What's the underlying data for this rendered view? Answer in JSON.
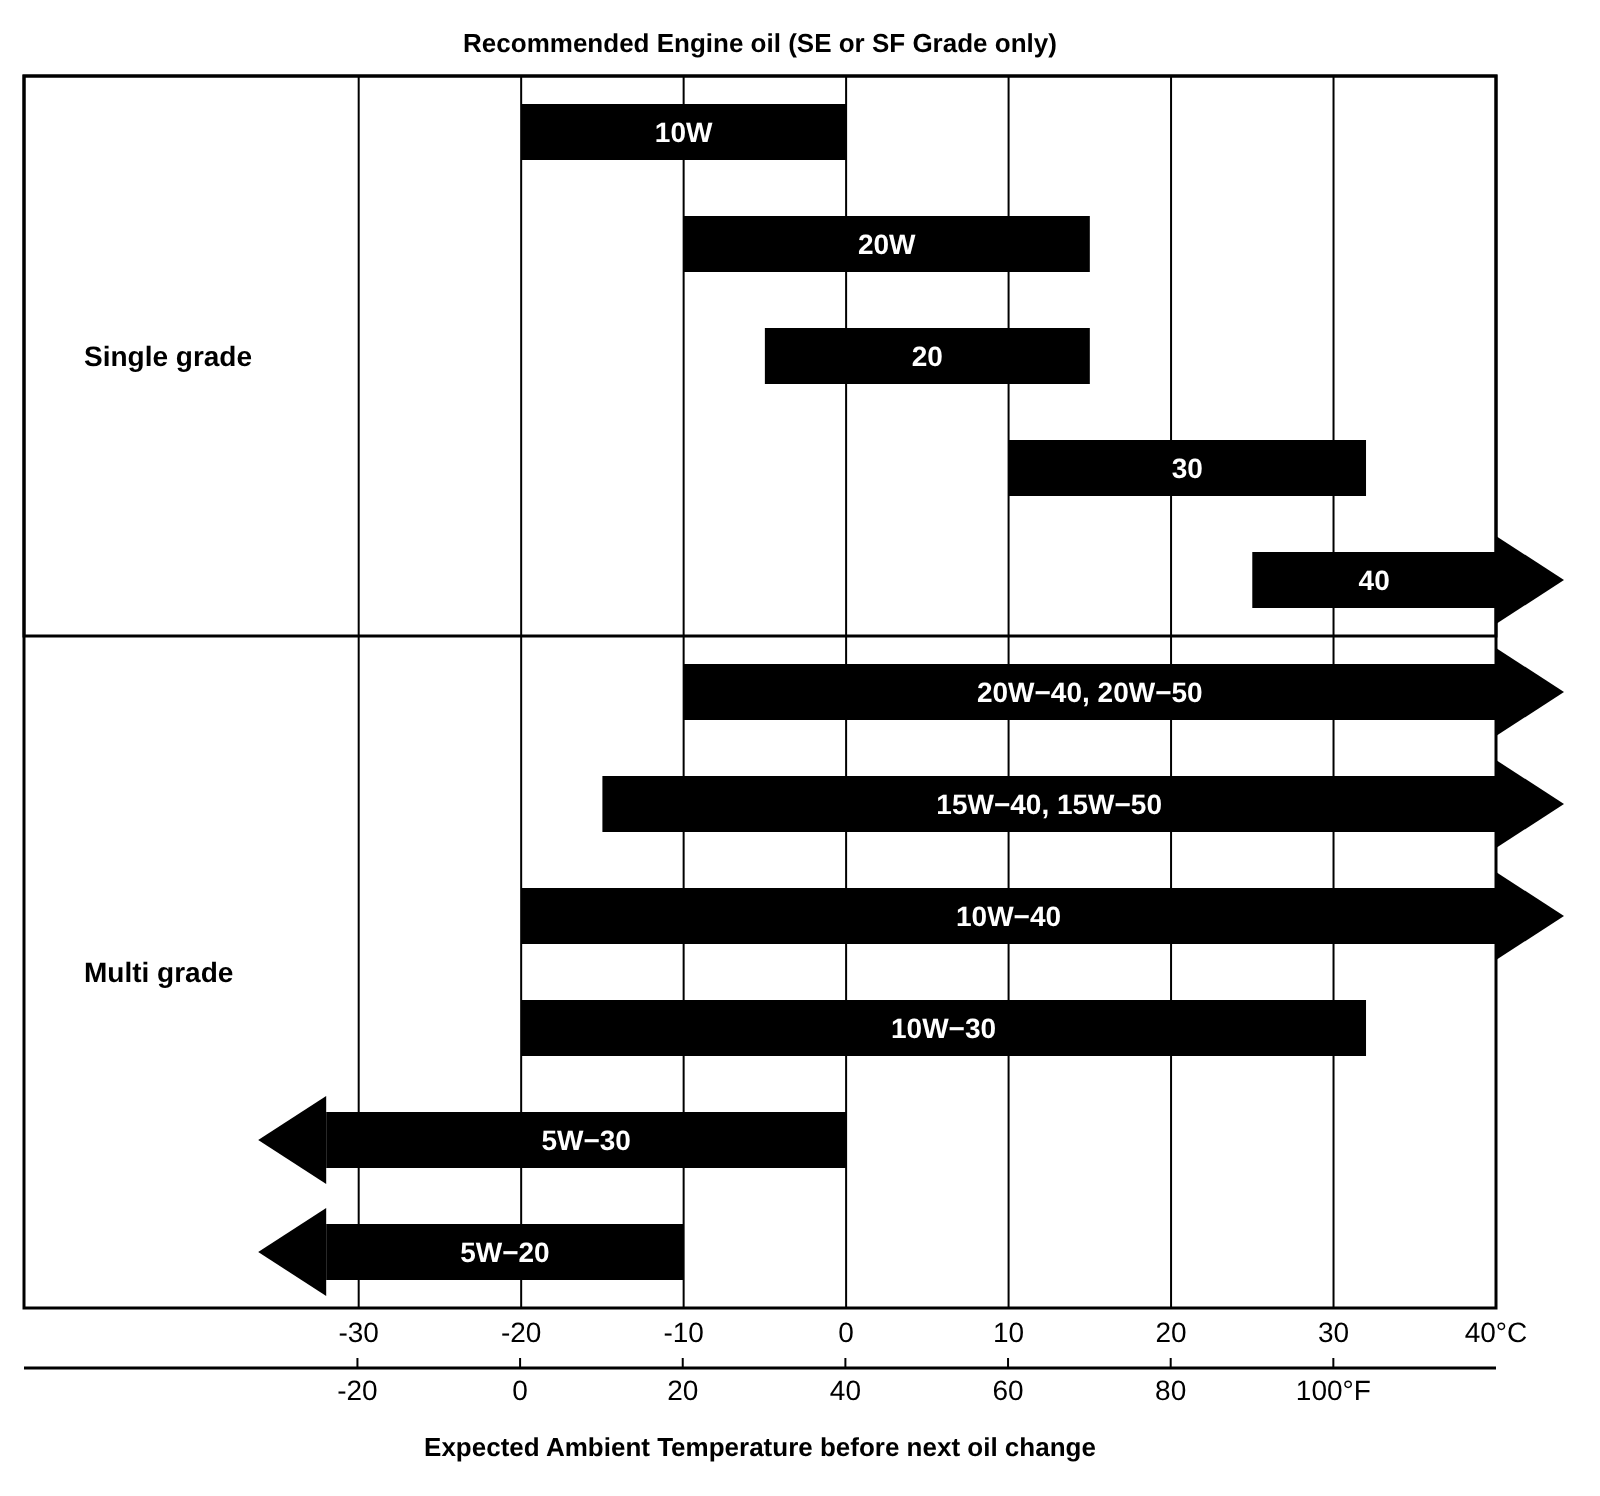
{
  "chart_data": {
    "type": "bar",
    "orientation": "horizontal",
    "title": "Recommended Engine oil (SE or SF Grade only)",
    "xlabel": "Expected Ambient Temperature before next oil change",
    "categories": [
      "10W",
      "20W",
      "20",
      "30",
      "40",
      "20W−40, 20W−50",
      "15W−40, 15W−50",
      "10W−40",
      "10W−30",
      "5W−30",
      "5W−20"
    ],
    "base": [
      -20,
      -10,
      -5,
      10,
      25,
      -10,
      -15,
      -20,
      -20,
      -32,
      -32
    ],
    "values": [
      20,
      25,
      20,
      22,
      15,
      50,
      55,
      60,
      52,
      32,
      22
    ],
    "color": "#000000",
    "xlim": [
      -50.6,
      40
    ],
    "xticks": [
      -30,
      -20,
      -10,
      0,
      10,
      20,
      30,
      {
        "value": 40,
        "label": "40°C"
      }
    ],
    "x2lim": [
      -61,
      120
    ],
    "x2ticks": [
      -20,
      0,
      20,
      40,
      60,
      80,
      {
        "value": 100,
        "label": "100°F"
      }
    ],
    "grid": "x",
    "annotations": [
      "Single grade",
      "Multi grade"
    ]
  }
}
